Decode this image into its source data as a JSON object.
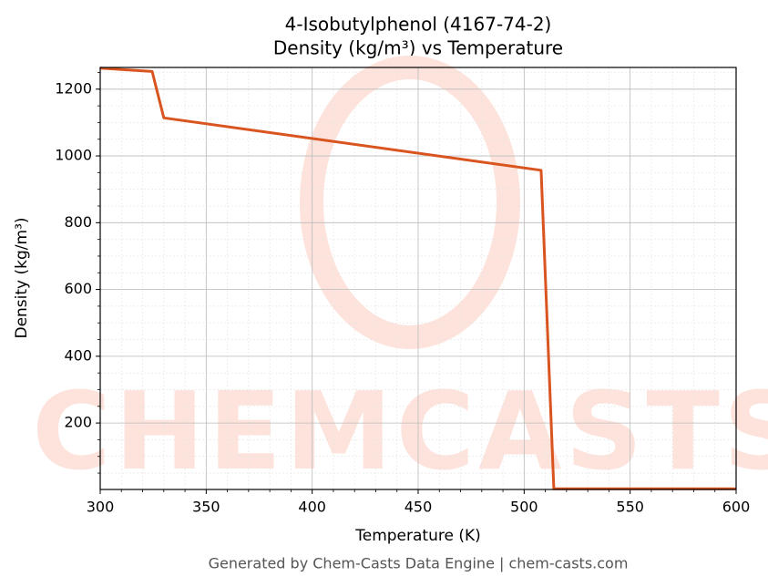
{
  "chart_data": {
    "type": "line",
    "title": "4-Isobutylphenol (4167-74-2)",
    "subtitle": "Density (kg/m³) vs Temperature",
    "x_label": "Temperature (K)",
    "y_label": "Density (kg/m³)",
    "watermark": "CHEMCASTS",
    "footer": "Generated by Chem-Casts Data Engine | chem-casts.com",
    "x": [
      300,
      324.5,
      330,
      508,
      514,
      600
    ],
    "series": [
      {
        "name": "Density",
        "color": "#d9541e",
        "values": [
          1263,
          1253,
          1114,
          957,
          3,
          3
        ]
      }
    ],
    "xlim": [
      300,
      600
    ],
    "xticks": [
      300,
      350,
      400,
      450,
      500,
      550,
      600
    ],
    "ylim": [
      1,
      1265
    ],
    "yticks": [
      200,
      400,
      600,
      800,
      1000,
      1200
    ],
    "grid": true
  }
}
